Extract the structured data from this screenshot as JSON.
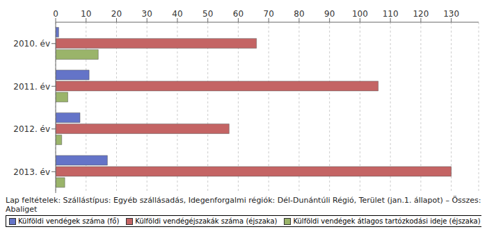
{
  "chart_data": {
    "type": "bar",
    "orientation": "horizontal",
    "subtitle": "Lap feltételek: Szállástípus: Egyéb szállásadás, Idegenforgalmi régiók: Dél-Dunántúli Régió, Terület (jan.1. állapot) – Összes: Abaliget",
    "categories": [
      "2010. év",
      "2011. év",
      "2012. év",
      "2013. év"
    ],
    "series": [
      {
        "name": "Külföldi vendégek száma (fő)",
        "color": "#6474c8",
        "values": [
          1,
          11,
          8,
          17
        ]
      },
      {
        "name": "Külföldi vendégéjszakák száma (éjszaka)",
        "color": "#c46464",
        "values": [
          66,
          106,
          57,
          130
        ]
      },
      {
        "name": "Külföldi vendégek átlagos tartózkodási ideje (éjszaka)",
        "color": "#9ab46a",
        "values": [
          14,
          4,
          2,
          3
        ]
      }
    ],
    "xlim": [
      0,
      139
    ],
    "xticks": [
      0,
      10,
      20,
      30,
      40,
      50,
      60,
      70,
      80,
      90,
      100,
      110,
      120,
      130
    ],
    "grid": true,
    "legend": "bottom"
  }
}
